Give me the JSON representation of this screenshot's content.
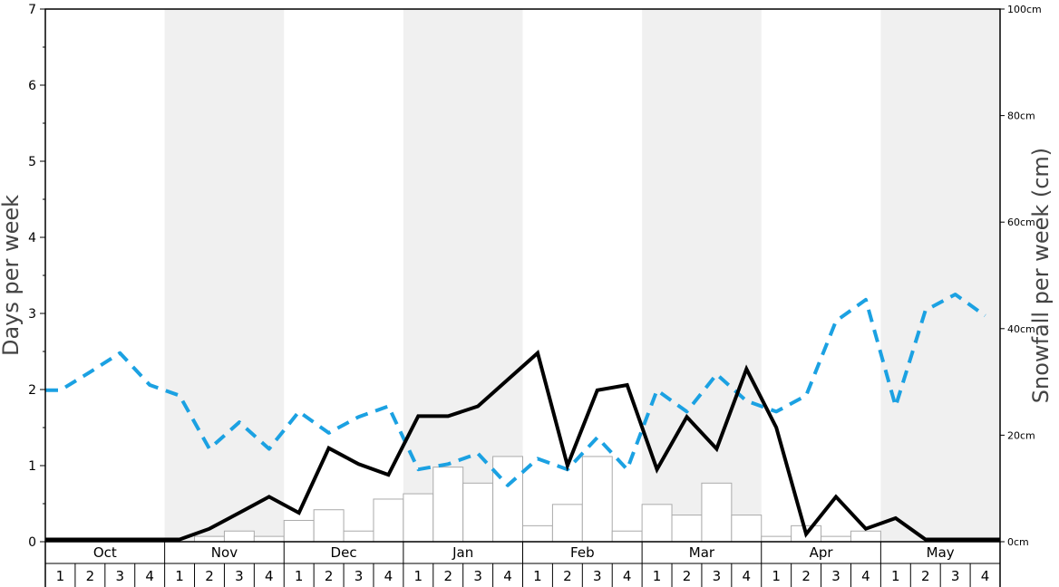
{
  "chart_data": {
    "type": "bar+line",
    "ylabel_left": "Days per week",
    "ylabel_right": "Snowfall per week (cm)",
    "ylim_left": [
      0,
      7
    ],
    "ylim_right": [
      0,
      100
    ],
    "left_ticks": [
      "0",
      "1",
      "2",
      "3",
      "4",
      "5",
      "6",
      "7"
    ],
    "right_ticks": [
      "0cm",
      "20cm",
      "40cm",
      "60cm",
      "80cm",
      "100cm"
    ],
    "months": [
      "Oct",
      "Nov",
      "Dec",
      "Jan",
      "Feb",
      "Mar",
      "Apr",
      "May"
    ],
    "week_labels": [
      "1",
      "2",
      "3",
      "4"
    ],
    "shaded_months": [
      "Nov",
      "Jan",
      "Mar",
      "May"
    ],
    "colors": {
      "solid_line": "#000000",
      "dashed_line": "#1ba1e2",
      "bars": "#ffffff",
      "bar_stroke": "#aaaaaa",
      "shade": "#f0f0f0"
    },
    "snowfall_cm": [
      0,
      0,
      0,
      0,
      0,
      1,
      2,
      1,
      4,
      6,
      2,
      8,
      9,
      14,
      11,
      16,
      3,
      7,
      16,
      2,
      7,
      5,
      11,
      5,
      1,
      3,
      1,
      2,
      0,
      0,
      0,
      0
    ],
    "solid_series_days": [
      0.03,
      0.03,
      0.03,
      0.03,
      0.03,
      0.17,
      0.38,
      0.59,
      0.38,
      1.23,
      1.02,
      0.88,
      1.65,
      1.65,
      1.78,
      2.13,
      2.48,
      1.0,
      1.99,
      2.06,
      0.95,
      1.64,
      1.22,
      2.27,
      1.5,
      0.1,
      0.59,
      0.17,
      0.31,
      0.03,
      0.03,
      0.03
    ],
    "dashed_series_days": [
      1.99,
      2.23,
      2.48,
      2.06,
      1.92,
      1.22,
      1.57,
      1.22,
      1.71,
      1.43,
      1.64,
      1.78,
      0.95,
      1.02,
      1.16,
      0.74,
      1.09,
      0.95,
      1.37,
      0.95,
      1.99,
      1.71,
      2.2,
      1.85,
      1.71,
      1.92,
      2.9,
      3.18,
      1.78,
      3.04,
      3.25,
      2.97
    ]
  }
}
